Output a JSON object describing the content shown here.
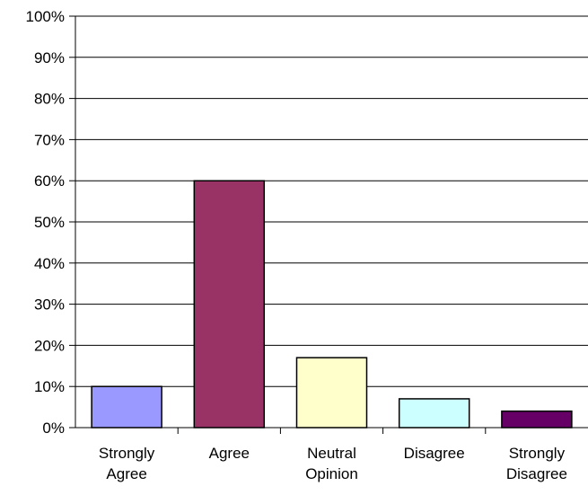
{
  "chart_data": {
    "type": "bar",
    "title": "",
    "xlabel": "",
    "ylabel": "",
    "categories": [
      [
        "Strongly",
        "Agree"
      ],
      [
        "Agree"
      ],
      [
        "Neutral",
        "Opinion"
      ],
      [
        "Disagree"
      ],
      [
        "Strongly",
        "Disagree"
      ]
    ],
    "values": [
      10,
      60,
      17,
      7,
      4
    ],
    "ylim": [
      0,
      100
    ],
    "yticks": [
      "0%",
      "10%",
      "20%",
      "30%",
      "40%",
      "50%",
      "60%",
      "70%",
      "80%",
      "90%",
      "100%"
    ],
    "grid": true,
    "legend": "none",
    "bar_colors": [
      "#9999FF",
      "#993366",
      "#FFFFCC",
      "#CCFFFF",
      "#660066"
    ]
  }
}
